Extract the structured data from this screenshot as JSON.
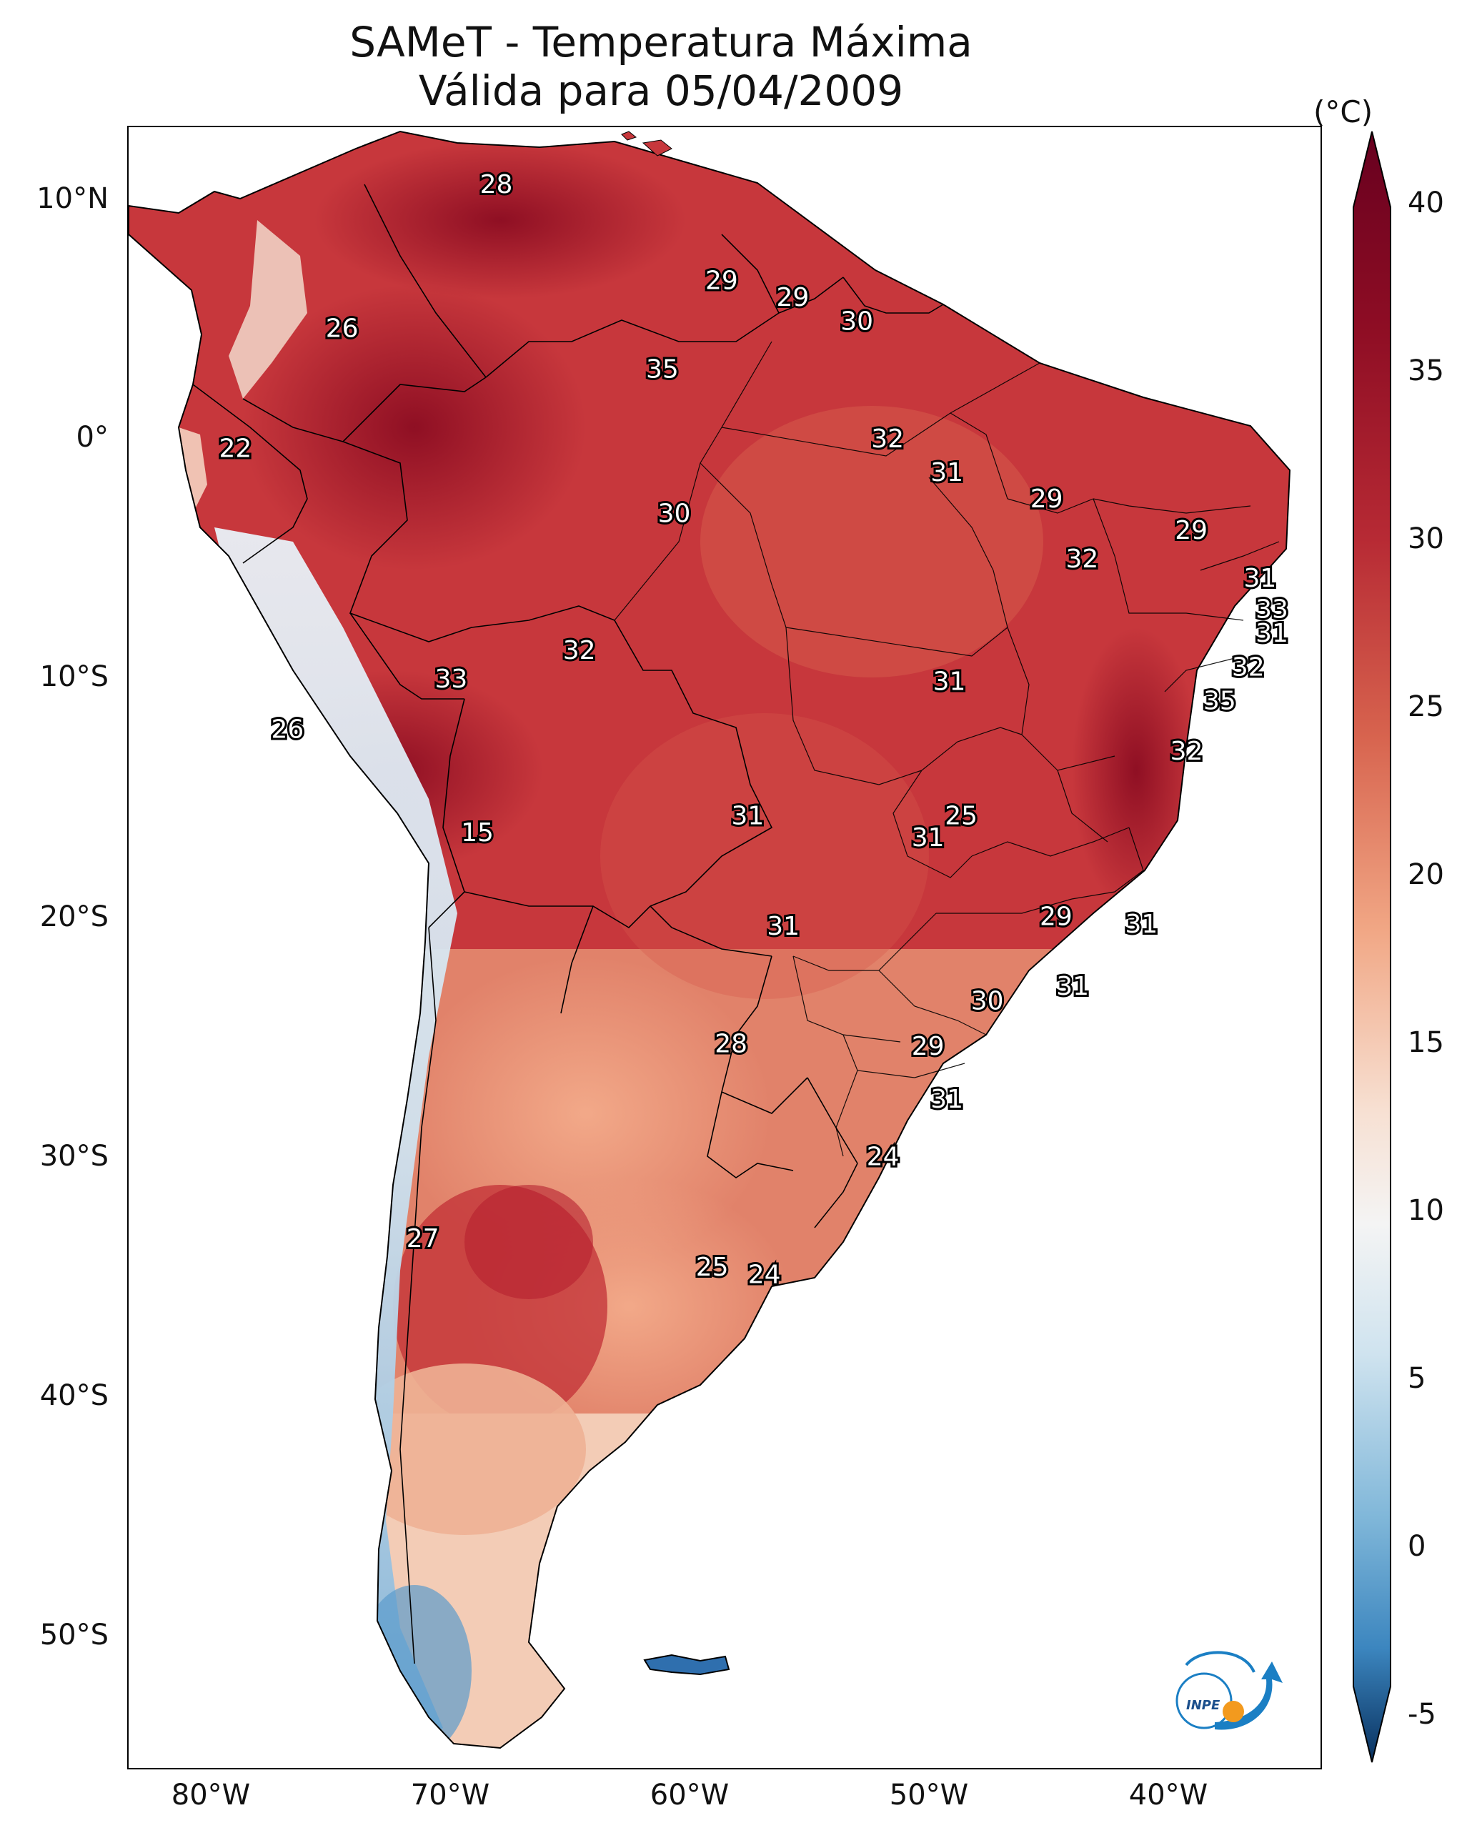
{
  "title": {
    "line1": "SAMeT - Temperatura Máxima",
    "line2": "Válida para 05/04/2009"
  },
  "colorbar": {
    "unit": "(°C)",
    "ticks": [
      "40",
      "35",
      "30",
      "25",
      "20",
      "15",
      "10",
      "5",
      "0",
      "-5"
    ],
    "min": -5,
    "max": 40,
    "colors": [
      "#0b3b70",
      "#2a6fb0",
      "#6aa8d3",
      "#b7d6e9",
      "#f3f5f6",
      "#f6c6ab",
      "#e8876b",
      "#c6333a",
      "#7d0d22"
    ]
  },
  "axes": {
    "lat_labels": [
      "10°N",
      "0°",
      "10°S",
      "20°S",
      "30°S",
      "40°S",
      "50°S"
    ],
    "lon_labels": [
      "80°W",
      "70°W",
      "60°W",
      "50°W",
      "40°W"
    ]
  },
  "map_labels": [
    {
      "text": "28",
      "lon": -67.5,
      "lat": 10.5
    },
    {
      "text": "26",
      "lon": -74.0,
      "lat": 4.5
    },
    {
      "text": "22",
      "lon": -78.5,
      "lat": -0.5
    },
    {
      "text": "29",
      "lon": -58.0,
      "lat": 6.5
    },
    {
      "text": "29",
      "lon": -55.0,
      "lat": 5.8
    },
    {
      "text": "30",
      "lon": -52.3,
      "lat": 4.8
    },
    {
      "text": "35",
      "lon": -60.5,
      "lat": 2.8
    },
    {
      "text": "32",
      "lon": -51.0,
      "lat": -0.1
    },
    {
      "text": "31",
      "lon": -48.5,
      "lat": -1.5
    },
    {
      "text": "30",
      "lon": -60.0,
      "lat": -3.2
    },
    {
      "text": "29",
      "lon": -44.3,
      "lat": -2.6
    },
    {
      "text": "29",
      "lon": -38.2,
      "lat": -3.9
    },
    {
      "text": "32",
      "lon": -42.8,
      "lat": -5.1
    },
    {
      "text": "31",
      "lon": -35.3,
      "lat": -5.9
    },
    {
      "text": "33",
      "lon": -34.8,
      "lat": -7.2
    },
    {
      "text": "31",
      "lon": -34.8,
      "lat": -8.2
    },
    {
      "text": "32",
      "lon": -64.0,
      "lat": -8.9
    },
    {
      "text": "33",
      "lon": -69.4,
      "lat": -10.1
    },
    {
      "text": "31",
      "lon": -48.4,
      "lat": -10.2
    },
    {
      "text": "32",
      "lon": -35.8,
      "lat": -9.6
    },
    {
      "text": "35",
      "lon": -37.0,
      "lat": -11.0
    },
    {
      "text": "26",
      "lon": -76.3,
      "lat": -12.2
    },
    {
      "text": "32",
      "lon": -38.4,
      "lat": -13.1
    },
    {
      "text": "15",
      "lon": -68.3,
      "lat": -16.5
    },
    {
      "text": "31",
      "lon": -56.9,
      "lat": -15.8
    },
    {
      "text": "25",
      "lon": -47.9,
      "lat": -15.8
    },
    {
      "text": "31",
      "lon": -49.3,
      "lat": -16.7
    },
    {
      "text": "29",
      "lon": -43.9,
      "lat": -20.0
    },
    {
      "text": "31",
      "lon": -55.4,
      "lat": -20.4
    },
    {
      "text": "31",
      "lon": -40.3,
      "lat": -20.3
    },
    {
      "text": "31",
      "lon": -43.2,
      "lat": -22.9
    },
    {
      "text": "30",
      "lon": -46.8,
      "lat": -23.5
    },
    {
      "text": "28",
      "lon": -57.6,
      "lat": -25.3
    },
    {
      "text": "29",
      "lon": -49.3,
      "lat": -25.4
    },
    {
      "text": "31",
      "lon": -48.5,
      "lat": -27.6
    },
    {
      "text": "24",
      "lon": -51.2,
      "lat": -30.0
    },
    {
      "text": "27",
      "lon": -70.6,
      "lat": -33.4
    },
    {
      "text": "25",
      "lon": -58.4,
      "lat": -34.6
    },
    {
      "text": "24",
      "lon": -56.2,
      "lat": -34.9
    }
  ],
  "logo_text": "INPE"
}
